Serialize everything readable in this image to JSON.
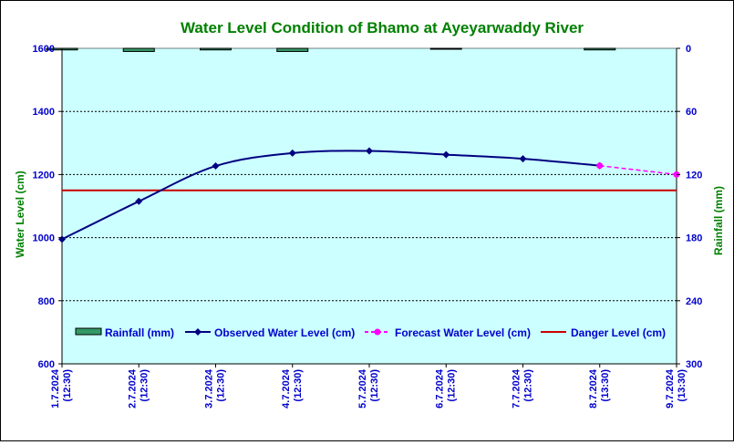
{
  "chart_data": {
    "type": "line",
    "title": "Water Level Condition of Bhamo at  Ayeyarwaddy River",
    "ylabel_left": "Water Level (cm)",
    "ylabel_right": "Rainfall (mm)",
    "ylim_left": [
      600,
      1600
    ],
    "yticks_left": [
      "600",
      "800",
      "1000",
      "1200",
      "1400",
      "1600"
    ],
    "ylim_right": [
      0,
      300
    ],
    "right_axis_inverted": true,
    "yticks_right": [
      "0",
      "60",
      "120",
      "180",
      "240",
      "300"
    ],
    "x_categories": [
      {
        "date": "1.7.2024",
        "time": "(12:30)"
      },
      {
        "date": "2.7.2024",
        "time": "(12:30)"
      },
      {
        "date": "3.7.2024",
        "time": "(12:30)"
      },
      {
        "date": "4.7.2024",
        "time": "(12:30)"
      },
      {
        "date": "5.7.2024",
        "time": "(12:30)"
      },
      {
        "date": "6.7.2024",
        "time": "(12:30)"
      },
      {
        "date": "7.7.2024",
        "time": "(12:30)"
      },
      {
        "date": "8.7.2024",
        "time": "(13:30)"
      },
      {
        "date": "9.7.2024",
        "time": "(13:30)"
      }
    ],
    "grid": "horizontal-dashed",
    "legend_position": "bottom-inside",
    "series": [
      {
        "name": "Rainfall (mm)",
        "kind": "bar",
        "axis": "right",
        "color": "#339966",
        "values": [
          1.5,
          3.0,
          1.5,
          3.0,
          0,
          0.5,
          0,
          1.5,
          0
        ]
      },
      {
        "name": "Observed Water Level (cm)",
        "kind": "line",
        "axis": "left",
        "color": "#000080",
        "values": [
          995,
          1115,
          1227,
          1268,
          1275,
          1263,
          1250,
          1228,
          null
        ]
      },
      {
        "name": "Forecast Water Level (cm)",
        "kind": "dashed-line",
        "axis": "left",
        "color": "#ff00ff",
        "values": [
          null,
          null,
          null,
          null,
          null,
          null,
          null,
          1228,
          1200
        ]
      },
      {
        "name": "Danger Level (cm)",
        "kind": "hline",
        "axis": "left",
        "color": "#cc0000",
        "value": 1150
      }
    ]
  }
}
